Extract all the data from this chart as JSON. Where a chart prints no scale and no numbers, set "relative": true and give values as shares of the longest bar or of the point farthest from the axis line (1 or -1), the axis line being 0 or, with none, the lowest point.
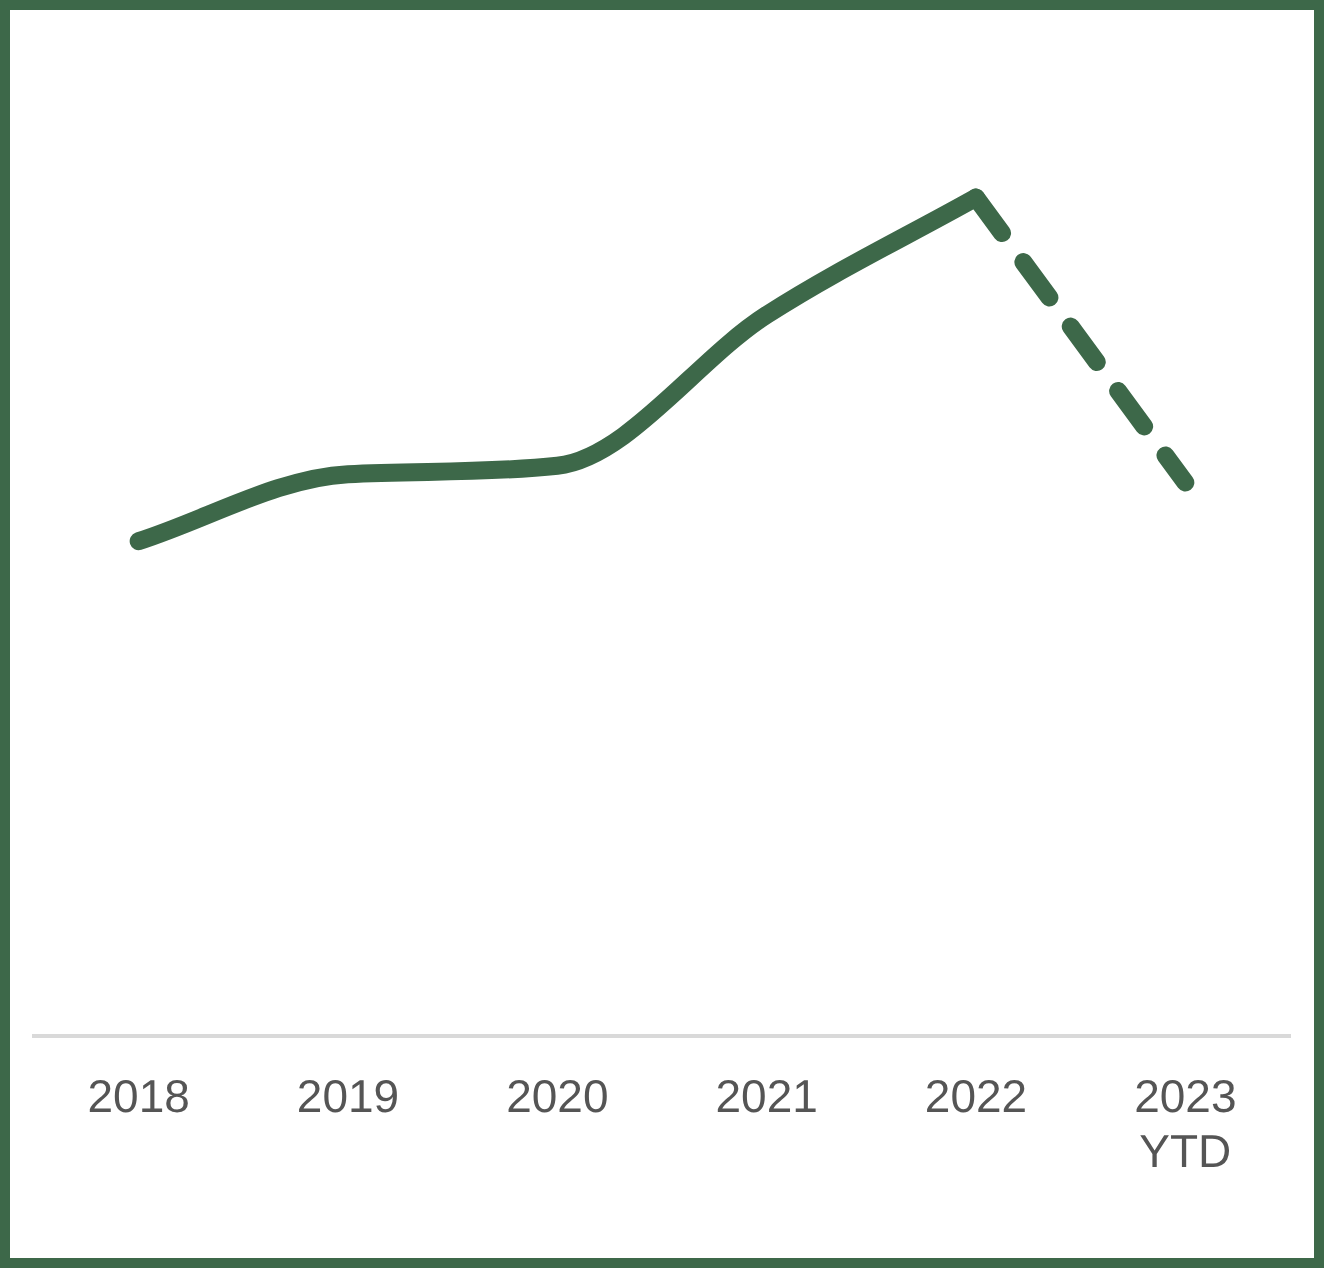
{
  "chart_data": {
    "type": "line",
    "relative": true,
    "categories": [
      "2018",
      "2019",
      "2020",
      "2021",
      "2022",
      "2023 YTD"
    ],
    "series": [
      {
        "color": "#3d6849",
        "line_style": "solid",
        "values": [
          0.59,
          0.67,
          0.68,
          0.86,
          1,
          null
        ]
      },
      {
        "color": "#3d6849",
        "line_style": "dashed",
        "values": [
          null,
          null,
          null,
          null,
          1,
          0.66
        ]
      }
    ]
  }
}
